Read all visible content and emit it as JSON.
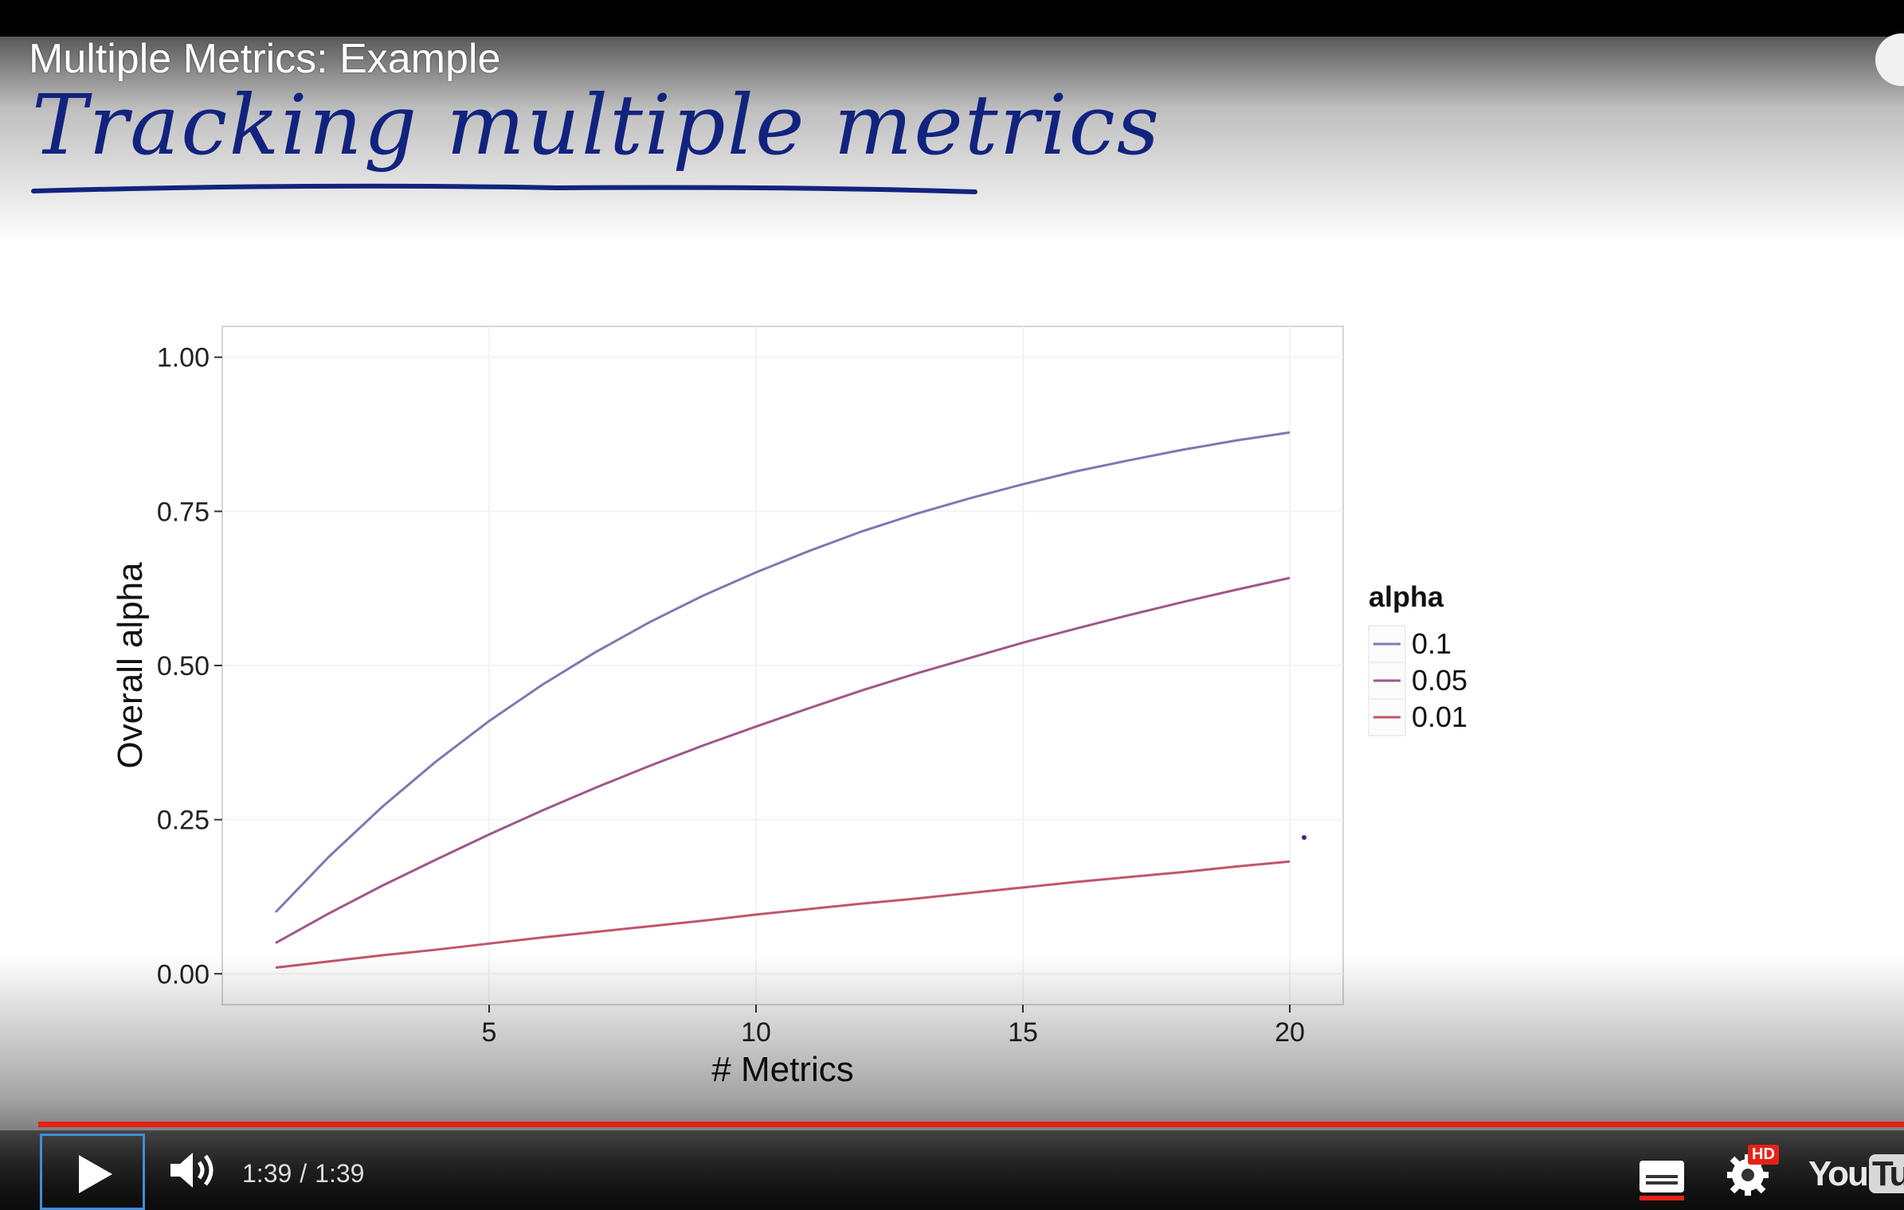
{
  "video": {
    "title": "Multiple Metrics: Example",
    "handwritten_heading": "Tracking multiple metrics",
    "handwriting_color": "#12237f"
  },
  "chart_data": {
    "type": "line",
    "xlabel": "# Metrics",
    "ylabel": "Overall alpha",
    "xlim": [
      0,
      21
    ],
    "ylim": [
      -0.05,
      1.05
    ],
    "x_ticks": [
      5,
      10,
      15,
      20
    ],
    "x_tick_labels": [
      "5",
      "10",
      "15",
      "20"
    ],
    "y_ticks": [
      0.0,
      0.25,
      0.5,
      0.75,
      1.0
    ],
    "y_tick_labels": [
      "0.00",
      "0.25",
      "0.50",
      "0.75",
      "1.00"
    ],
    "grid": true,
    "legend_title": "alpha",
    "legend_position": "right",
    "x": [
      1,
      2,
      3,
      4,
      5,
      6,
      7,
      8,
      9,
      10,
      11,
      12,
      13,
      14,
      15,
      16,
      17,
      18,
      19,
      20
    ],
    "series": [
      {
        "name": "0.1",
        "color": "#7c7ab2",
        "values": [
          0.1,
          0.19,
          0.271,
          0.344,
          0.41,
          0.469,
          0.522,
          0.57,
          0.613,
          0.651,
          0.686,
          0.718,
          0.746,
          0.771,
          0.794,
          0.815,
          0.833,
          0.85,
          0.865,
          0.878
        ]
      },
      {
        "name": "0.05",
        "color": "#a0578a",
        "values": [
          0.05,
          0.098,
          0.143,
          0.185,
          0.226,
          0.265,
          0.302,
          0.337,
          0.37,
          0.401,
          0.431,
          0.46,
          0.487,
          0.512,
          0.537,
          0.56,
          0.582,
          0.603,
          0.623,
          0.642
        ]
      },
      {
        "name": "0.01",
        "color": "#c0566a",
        "values": [
          0.01,
          0.02,
          0.03,
          0.039,
          0.049,
          0.059,
          0.068,
          0.077,
          0.086,
          0.096,
          0.105,
          0.114,
          0.122,
          0.131,
          0.14,
          0.149,
          0.157,
          0.165,
          0.174,
          0.182
        ]
      }
    ]
  },
  "player": {
    "current_time": "1:39",
    "separator": "/",
    "duration": "1:39",
    "progress_fraction": 1.0,
    "progress_color": "#e62117",
    "hd_badge": "HD",
    "logo_you": "You",
    "logo_tube": "Tube",
    "icons": [
      "play-icon",
      "volume-icon",
      "captions-icon",
      "gear-icon",
      "clock-icon"
    ]
  }
}
